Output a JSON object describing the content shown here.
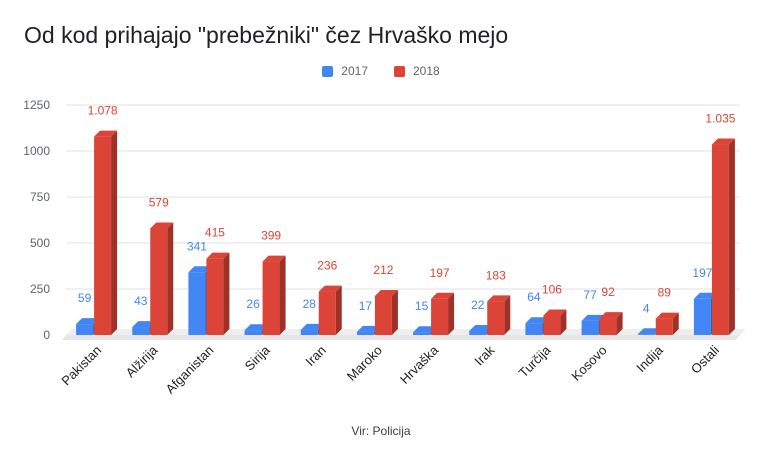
{
  "chart_data": {
    "type": "bar",
    "title": "Od kod prihajajo \"prebežniki\" čez Hrvaško mejo",
    "source": "Vir: Policija",
    "categories": [
      "Pakistan",
      "Alžirija",
      "Afganistan",
      "Sirija",
      "Iran",
      "Maroko",
      "Hrvaška",
      "Irak",
      "Turčija",
      "Kosovo",
      "Indija",
      "Ostali"
    ],
    "series": [
      {
        "name": "2017",
        "color": "#4285f4",
        "values": [
          59,
          43,
          341,
          26,
          28,
          17,
          15,
          22,
          64,
          77,
          4,
          197
        ],
        "labels": [
          "59",
          "43",
          "341",
          "26",
          "28",
          "17",
          "15",
          "22",
          "64",
          "77",
          "4",
          "197"
        ]
      },
      {
        "name": "2018",
        "color": "#db4437",
        "values": [
          1078,
          579,
          415,
          399,
          236,
          212,
          197,
          183,
          106,
          92,
          89,
          1035
        ],
        "labels": [
          "1.078",
          "579",
          "415",
          "399",
          "236",
          "212",
          "197",
          "183",
          "106",
          "92",
          "89",
          "1.035"
        ]
      }
    ],
    "yticks": [
      "0",
      "250",
      "500",
      "750",
      "1000",
      "1250"
    ],
    "ylim": [
      0,
      1250
    ],
    "grid": true,
    "legend_position": "top"
  }
}
